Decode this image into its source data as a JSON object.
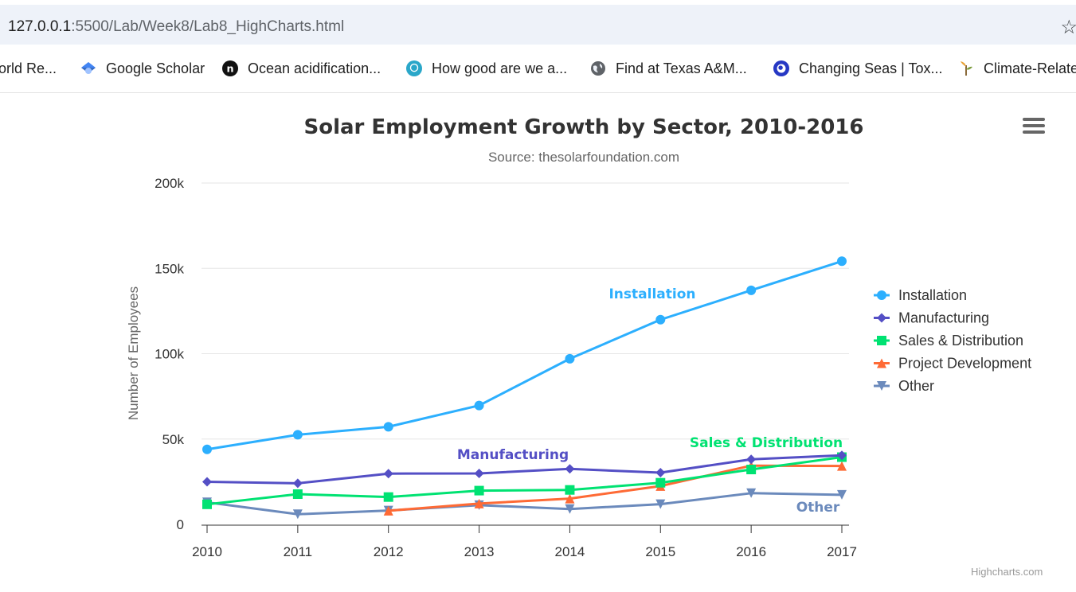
{
  "browser": {
    "url_host": "127.0.0.1",
    "url_path": ":5500/Lab/Week8/Lab8_HighCharts.html",
    "bookmark_icon": "star-icon"
  },
  "bookmarks": [
    {
      "label": "orld Re...",
      "icon": "globe-icon"
    },
    {
      "label": "Google Scholar",
      "icon": "scholar-icon"
    },
    {
      "label": "Ocean acidification...",
      "icon": "n-logo-icon"
    },
    {
      "label": "How good are we a...",
      "icon": "site-logo-icon"
    },
    {
      "label": "Find at Texas A&M...",
      "icon": "globe-icon"
    },
    {
      "label": "Changing Seas | Tox...",
      "icon": "pbs-icon"
    },
    {
      "label": "Climate-Relate",
      "icon": "plant-icon"
    }
  ],
  "chart_data": {
    "type": "line",
    "title": "Solar Employment Growth by Sector, 2010-2016",
    "subtitle": "Source: thesolarfoundation.com",
    "ylabel": "Number of Employees",
    "xlabel": "",
    "x": [
      2010,
      2011,
      2012,
      2013,
      2014,
      2015,
      2016,
      2017
    ],
    "ylim": [
      0,
      200000
    ],
    "yticks": [
      0,
      50000,
      100000,
      150000,
      200000
    ],
    "ytick_labels": [
      "0",
      "50k",
      "100k",
      "150k",
      "200k"
    ],
    "grid": true,
    "legend": "right-middle",
    "series": [
      {
        "name": "Installation",
        "color": "#2caffe",
        "marker": "circle",
        "values": [
          43934,
          52503,
          57177,
          69658,
          97031,
          119931,
          137133,
          154175
        ]
      },
      {
        "name": "Manufacturing",
        "color": "#544fc5",
        "marker": "diamond",
        "values": [
          24916,
          24064,
          29742,
          29851,
          32490,
          30282,
          38121,
          40434
        ]
      },
      {
        "name": "Sales & Distribution",
        "color": "#00e272",
        "marker": "square",
        "values": [
          11744,
          17722,
          16005,
          19771,
          20185,
          24377,
          32147,
          39387
        ]
      },
      {
        "name": "Project Development",
        "color": "#fe6a35",
        "marker": "triangle",
        "values": [
          null,
          null,
          7988,
          12169,
          15112,
          22452,
          34400,
          34227
        ]
      },
      {
        "name": "Other",
        "color": "#6b8abc",
        "marker": "triangle-down",
        "values": [
          12908,
          5948,
          8105,
          11248,
          8989,
          11816,
          18274,
          17300
        ]
      }
    ],
    "annotations": [
      {
        "text": "Installation",
        "color": "#2caffe"
      },
      {
        "text": "Manufacturing",
        "color": "#544fc5"
      },
      {
        "text": "Sales & Distribution",
        "color": "#00e272"
      },
      {
        "text": "Other",
        "color": "#6b8abc"
      }
    ]
  },
  "chart_menu_icon": "hamburger-menu-icon",
  "credits": "Highcharts.com"
}
